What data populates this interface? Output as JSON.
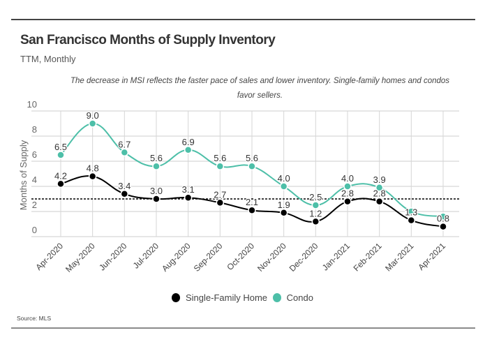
{
  "chart_data": {
    "type": "line",
    "title": "San Francisco Months of Supply Inventory",
    "subtitle": "TTM, Monthly",
    "annotation": "The decrease in MSI reflects the faster pace of sales and lower inventory. Single-family homes and condos favor sellers.",
    "ylabel": "Months of Supply",
    "xlabel": "",
    "ylim": [
      0,
      10
    ],
    "yticks": [
      0,
      2,
      4,
      6,
      8,
      10
    ],
    "grid": true,
    "legend_position": "bottom",
    "reference_line": {
      "value": 3,
      "style": "dashed"
    },
    "categories": [
      "Apr-2020",
      "May-2020",
      "Jun-2020",
      "Jul-2020",
      "Aug-2020",
      "Sep-2020",
      "Oct-2020",
      "Nov-2020",
      "Dec-2020",
      "Jan-2021",
      "Feb-2021",
      "Mar-2021",
      "Apr-2021"
    ],
    "series": [
      {
        "name": "Single-Family Home",
        "color": "#000000",
        "values": [
          4.2,
          4.8,
          3.4,
          3.0,
          3.1,
          2.7,
          2.1,
          1.9,
          1.2,
          2.8,
          2.8,
          1.3,
          0.8
        ],
        "labels": [
          "4.2",
          "4.8",
          "3.4",
          "3.0",
          "3.1",
          "2.7",
          "2.1",
          "1.9",
          "1.2",
          "2.8",
          "2.8",
          "1.3",
          "0.8"
        ]
      },
      {
        "name": "Condo",
        "color": "#4dbfa8",
        "values": [
          6.5,
          9.0,
          6.7,
          5.6,
          6.9,
          5.6,
          5.6,
          4.0,
          2.5,
          4.0,
          3.9,
          2.0,
          1.6
        ],
        "labels": [
          "6.5",
          "9.0",
          "6.7",
          "5.6",
          "6.9",
          "5.6",
          "5.6",
          "4.0",
          "2.5",
          "4.0",
          "3.9",
          "",
          ""
        ]
      }
    ],
    "source": "Source:  MLS"
  }
}
